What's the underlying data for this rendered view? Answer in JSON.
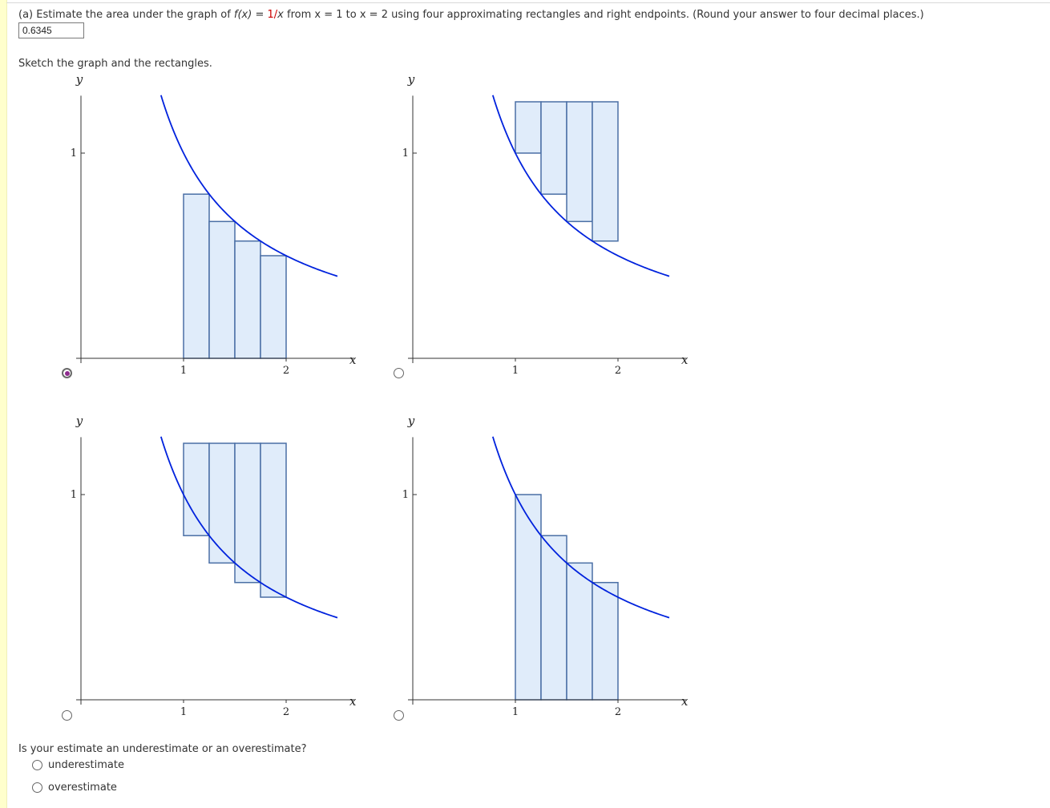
{
  "question": {
    "prefix": "(a) Estimate the area under the graph of ",
    "fx": "f(x)",
    "eq": " = ",
    "func": "1/",
    "var": "x",
    "from": " from ",
    "x1": "x = 1",
    "to": " to ",
    "x2": "x = 2",
    "suffix": " using four approximating rectangles and right endpoints. (Round your answer to four decimal places.)"
  },
  "answer": {
    "value": "0.6345"
  },
  "sketch_label": "Sketch the graph and the rectangles.",
  "graphs": [
    {
      "selected": true,
      "endpoint": "right",
      "rect_side": "below-curve",
      "y_label": "y",
      "x_label": "x",
      "x_ticks": [
        "1",
        "2"
      ],
      "y_ticks": [
        "1"
      ]
    },
    {
      "selected": false,
      "endpoint": "left",
      "rect_side": "hanging-from-top",
      "y_label": "y",
      "x_label": "x",
      "x_ticks": [
        "1",
        "2"
      ],
      "y_ticks": [
        "1"
      ]
    },
    {
      "selected": false,
      "endpoint": "right",
      "rect_side": "hanging-from-top",
      "y_label": "y",
      "x_label": "x",
      "x_ticks": [
        "1",
        "2"
      ],
      "y_ticks": [
        "1"
      ]
    },
    {
      "selected": false,
      "endpoint": "left",
      "rect_side": "below-curve",
      "y_label": "y",
      "x_label": "x",
      "x_ticks": [
        "1",
        "2"
      ],
      "y_ticks": [
        "1"
      ]
    }
  ],
  "chart_data": {
    "type": "line",
    "function": "1/x",
    "x_range": [
      0.75,
      2.5
    ],
    "y_range": [
      0,
      1.25
    ],
    "rectangles": 4,
    "interval": [
      1,
      2
    ],
    "colors": {
      "curve": "#0022dd",
      "rect_fill": "#e0ecfa",
      "rect_stroke": "#4a6fa5"
    }
  },
  "estimate_question": "Is your estimate an underestimate or an overestimate?",
  "options": [
    {
      "label": "underestimate",
      "selected": false
    },
    {
      "label": "overestimate",
      "selected": false
    }
  ]
}
